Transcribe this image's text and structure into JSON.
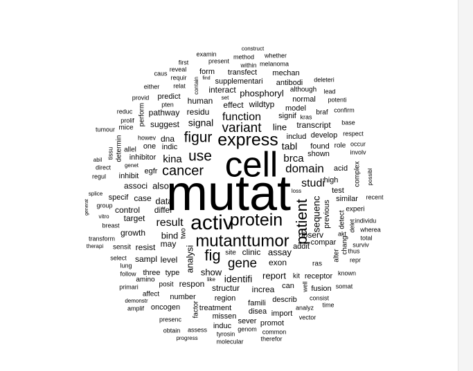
{
  "colors": {
    "background": "#ffffff",
    "text": "#000000",
    "scrollbar": "#f4f4f4"
  },
  "cloud": {
    "words": [
      {
        "text": "mutat",
        "freq": 100
      },
      {
        "text": "cell",
        "freq": 72
      },
      {
        "text": "activ",
        "freq": 44
      },
      {
        "text": "express",
        "freq": 40
      },
      {
        "text": "mutant",
        "freq": 39
      },
      {
        "text": "tumor",
        "freq": 39
      },
      {
        "text": "protein",
        "freq": 37
      },
      {
        "text": "fig",
        "freq": 37
      },
      {
        "text": "cancer",
        "freq": 32
      },
      {
        "text": "figur",
        "freq": 33
      },
      {
        "text": "use",
        "freq": 31
      },
      {
        "text": "variant",
        "freq": 30
      },
      {
        "text": "patient",
        "freq": 33
      },
      {
        "text": "gene",
        "freq": 30
      },
      {
        "text": "domain",
        "freq": 28
      },
      {
        "text": "function",
        "freq": 24
      },
      {
        "text": "result",
        "freq": 25
      },
      {
        "text": "studi",
        "freq": 24
      },
      {
        "text": "brca",
        "freq": 24
      },
      {
        "text": "kina",
        "freq": 20
      },
      {
        "text": "sequenc",
        "freq": 20
      },
      {
        "text": "signal",
        "freq": 18
      },
      {
        "text": "tabl",
        "freq": 18
      },
      {
        "text": "phosphoryl",
        "freq": 18
      },
      {
        "text": "identifi",
        "freq": 18
      },
      {
        "text": "line",
        "freq": 16
      },
      {
        "text": "show",
        "freq": 18
      },
      {
        "text": "analysi",
        "freq": 18
      },
      {
        "text": "also",
        "freq": 16
      },
      {
        "text": "bind",
        "freq": 16
      },
      {
        "text": "data",
        "freq": 16
      },
      {
        "text": "report",
        "freq": 16
      },
      {
        "text": "assay",
        "freq": 16
      },
      {
        "text": "transcript",
        "freq": 15
      },
      {
        "text": "observ",
        "freq": 16
      },
      {
        "text": "increa",
        "freq": 16
      },
      {
        "text": "structur",
        "freq": 16
      },
      {
        "text": "respon",
        "freq": 15
      },
      {
        "text": "may",
        "freq": 15
      },
      {
        "text": "differ",
        "freq": 15
      },
      {
        "text": "exon",
        "freq": 15
      },
      {
        "text": "level",
        "freq": 14
      },
      {
        "text": "growth",
        "freq": 15
      },
      {
        "text": "human",
        "freq": 15
      },
      {
        "text": "residu",
        "freq": 15
      },
      {
        "text": "suggest",
        "freq": 14
      },
      {
        "text": "pathway",
        "freq": 14
      },
      {
        "text": "dna",
        "freq": 14
      },
      {
        "text": "effect",
        "freq": 14
      },
      {
        "text": "interact",
        "freq": 14
      },
      {
        "text": "previous",
        "freq": 14
      },
      {
        "text": "shown",
        "freq": 14
      },
      {
        "text": "found",
        "freq": 14
      },
      {
        "text": "includ",
        "freq": 14
      },
      {
        "text": "signif",
        "freq": 14
      },
      {
        "text": "wildtyp",
        "freq": 14
      },
      {
        "text": "control",
        "freq": 14
      },
      {
        "text": "target",
        "freq": 14
      },
      {
        "text": "resist",
        "freq": 14
      },
      {
        "text": "sampl",
        "freq": 14
      },
      {
        "text": "clinic",
        "freq": 14
      },
      {
        "text": "inhibitor",
        "freq": 13
      },
      {
        "text": "associ",
        "freq": 13
      },
      {
        "text": "case",
        "freq": 13
      },
      {
        "text": "egfr",
        "freq": 13
      },
      {
        "text": "one",
        "freq": 13
      },
      {
        "text": "indic",
        "freq": 13
      },
      {
        "text": "inhibit",
        "freq": 13
      },
      {
        "text": "specif",
        "freq": 13
      },
      {
        "text": "type",
        "freq": 13
      },
      {
        "text": "three",
        "freq": 13
      },
      {
        "text": "addit",
        "freq": 13
      },
      {
        "text": "compar",
        "freq": 13
      },
      {
        "text": "high",
        "freq": 13
      },
      {
        "text": "test",
        "freq": 13
      },
      {
        "text": "similar",
        "freq": 13
      },
      {
        "text": "acid",
        "freq": 13
      },
      {
        "text": "develop",
        "freq": 13
      },
      {
        "text": "model",
        "freq": 13
      },
      {
        "text": "normal",
        "freq": 13
      },
      {
        "text": "mechan",
        "freq": 13
      },
      {
        "text": "antibodi",
        "freq": 13
      },
      {
        "text": "although",
        "freq": 12
      },
      {
        "text": "form",
        "freq": 12
      },
      {
        "text": "transfect",
        "freq": 12
      },
      {
        "text": "supplementari",
        "freq": 12
      },
      {
        "text": "predict",
        "freq": 12
      },
      {
        "text": "perform",
        "freq": 12
      },
      {
        "text": "determin",
        "freq": 12
      },
      {
        "text": "sensit",
        "freq": 12
      },
      {
        "text": "amino",
        "freq": 12
      },
      {
        "text": "posit",
        "freq": 12
      },
      {
        "text": "number",
        "freq": 12
      },
      {
        "text": "oncogen",
        "freq": 12
      },
      {
        "text": "affect",
        "freq": 12
      },
      {
        "text": "region",
        "freq": 12
      },
      {
        "text": "treatment",
        "freq": 12
      },
      {
        "text": "missen",
        "freq": 12
      },
      {
        "text": "induc",
        "freq": 12
      },
      {
        "text": "sever",
        "freq": 12
      },
      {
        "text": "promot",
        "freq": 12
      },
      {
        "text": "famili",
        "freq": 12
      },
      {
        "text": "disea",
        "freq": 12
      },
      {
        "text": "import",
        "freq": 12
      },
      {
        "text": "describ",
        "freq": 12
      },
      {
        "text": "can",
        "freq": 12
      },
      {
        "text": "kit",
        "freq": 12
      },
      {
        "text": "receptor",
        "freq": 12
      },
      {
        "text": "fusion",
        "freq": 12
      },
      {
        "text": "ras",
        "freq": 12
      },
      {
        "text": "two",
        "freq": 12
      },
      {
        "text": "factor",
        "freq": 12
      },
      {
        "text": "site",
        "freq": 12
      },
      {
        "text": "alter",
        "freq": 12
      },
      {
        "text": "chang",
        "freq": 12
      },
      {
        "text": "detect",
        "freq": 12
      },
      {
        "text": "experi",
        "freq": 12
      },
      {
        "text": "complex",
        "freq": 12
      },
      {
        "text": "role",
        "freq": 11
      },
      {
        "text": "braf",
        "freq": 11
      },
      {
        "text": "kras",
        "freq": 11
      },
      {
        "text": "confirm",
        "freq": 11
      },
      {
        "text": "base",
        "freq": 11
      },
      {
        "text": "respect",
        "freq": 11
      },
      {
        "text": "occur",
        "freq": 11
      },
      {
        "text": "involv",
        "freq": 11
      },
      {
        "text": "possibl",
        "freq": 11
      },
      {
        "text": "recent",
        "freq": 11
      },
      {
        "text": "known",
        "freq": 11
      },
      {
        "text": "individu",
        "freq": 11
      },
      {
        "text": "wherea",
        "freq": 11
      },
      {
        "text": "delet",
        "freq": 11
      },
      {
        "text": "akt",
        "freq": 11
      },
      {
        "text": "total",
        "freq": 11
      },
      {
        "text": "surviv",
        "freq": 11
      },
      {
        "text": "thus",
        "freq": 11
      },
      {
        "text": "repr",
        "freq": 11
      },
      {
        "text": "somat",
        "freq": 11
      },
      {
        "text": "consist",
        "freq": 11
      },
      {
        "text": "time",
        "freq": 11
      },
      {
        "text": "analyz",
        "freq": 11
      },
      {
        "text": "vector",
        "freq": 11
      },
      {
        "text": "genom",
        "freq": 11
      },
      {
        "text": "common",
        "freq": 11
      },
      {
        "text": "therefor",
        "freq": 11
      },
      {
        "text": "tyrosin",
        "freq": 11
      },
      {
        "text": "molecular",
        "freq": 11
      },
      {
        "text": "assess",
        "freq": 11
      },
      {
        "text": "obtain",
        "freq": 11
      },
      {
        "text": "progress",
        "freq": 11
      },
      {
        "text": "presenc",
        "freq": 11
      },
      {
        "text": "amplif",
        "freq": 11
      },
      {
        "text": "demonstr",
        "freq": 11
      },
      {
        "text": "primari",
        "freq": 11
      },
      {
        "text": "follow",
        "freq": 11
      },
      {
        "text": "lung",
        "freq": 11
      },
      {
        "text": "select",
        "freq": 11
      },
      {
        "text": "therapi",
        "freq": 11
      },
      {
        "text": "transform",
        "freq": 11
      },
      {
        "text": "breast",
        "freq": 11
      },
      {
        "text": "vitro",
        "freq": 11
      },
      {
        "text": "group",
        "freq": 11
      },
      {
        "text": "splice",
        "freq": 11
      },
      {
        "text": "generat",
        "freq": 11
      },
      {
        "text": "regul",
        "freq": 11
      },
      {
        "text": "direct",
        "freq": 11
      },
      {
        "text": "abil",
        "freq": 11
      },
      {
        "text": "genet",
        "freq": 11
      },
      {
        "text": "allel",
        "freq": 11
      },
      {
        "text": "tissu",
        "freq": 11
      },
      {
        "text": "howev",
        "freq": 11
      },
      {
        "text": "tumour",
        "freq": 11
      },
      {
        "text": "mice",
        "freq": 11
      },
      {
        "text": "prolif",
        "freq": 11
      },
      {
        "text": "reduc",
        "freq": 11
      },
      {
        "text": "provid",
        "freq": 11
      },
      {
        "text": "pten",
        "freq": 11
      },
      {
        "text": "either",
        "freq": 11
      },
      {
        "text": "caus",
        "freq": 11
      },
      {
        "text": "reveal",
        "freq": 11
      },
      {
        "text": "requir",
        "freq": 11
      },
      {
        "text": "relat",
        "freq": 11
      },
      {
        "text": "first",
        "freq": 11
      },
      {
        "text": "examin",
        "freq": 11
      },
      {
        "text": "present",
        "freq": 11
      },
      {
        "text": "contain",
        "freq": 11
      },
      {
        "text": "find",
        "freq": 11
      },
      {
        "text": "method",
        "freq": 11
      },
      {
        "text": "within",
        "freq": 11
      },
      {
        "text": "construct",
        "freq": 11
      },
      {
        "text": "whether",
        "freq": 11
      },
      {
        "text": "melanoma",
        "freq": 11
      },
      {
        "text": "deleteri",
        "freq": 11
      },
      {
        "text": "lead",
        "freq": 11
      },
      {
        "text": "potenti",
        "freq": 11
      },
      {
        "text": "set",
        "freq": 11
      },
      {
        "text": "well",
        "freq": 11
      },
      {
        "text": "loss",
        "freq": 11
      },
      {
        "text": "like",
        "freq": 11
      }
    ]
  }
}
